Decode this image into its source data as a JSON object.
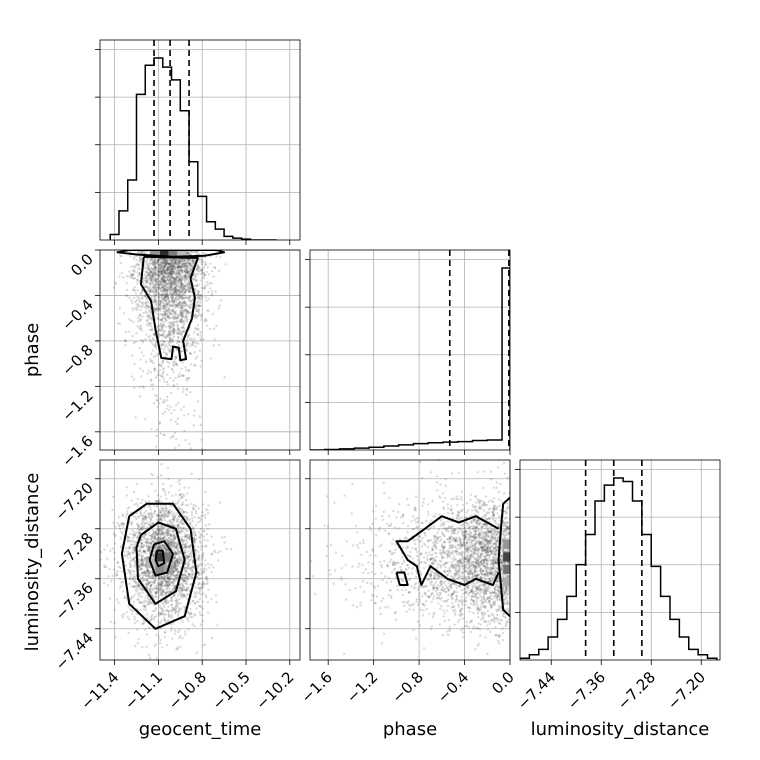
{
  "chart_data": {
    "type": "corner",
    "parameters": [
      "geocent_time",
      "phase",
      "luminosity_distance"
    ],
    "axis_labels": {
      "geocent_time": "geocent_time",
      "phase": "phase",
      "luminosity_distance": "luminosity_distance"
    },
    "ticks": {
      "geocent_time": [
        {
          "value": -11.4,
          "label": "−11.4"
        },
        {
          "value": -11.1,
          "label": "−11.1"
        },
        {
          "value": -10.8,
          "label": "−10.8"
        },
        {
          "value": -10.5,
          "label": "−10.5"
        },
        {
          "value": -10.2,
          "label": "−10.2"
        }
      ],
      "phase": [
        {
          "value": -1.6,
          "label": "−1.6"
        },
        {
          "value": -1.2,
          "label": "−1.2"
        },
        {
          "value": -0.8,
          "label": "−0.8"
        },
        {
          "value": -0.4,
          "label": "−0.4"
        },
        {
          "value": 0.0,
          "label": "0.0"
        }
      ],
      "luminosity_distance": [
        {
          "value": -7.44,
          "label": "−7.44"
        },
        {
          "value": -7.36,
          "label": "−7.36"
        },
        {
          "value": -7.28,
          "label": "−7.28"
        },
        {
          "value": -7.2,
          "label": "−7.20"
        }
      ]
    },
    "ranges": {
      "geocent_time": [
        -11.5,
        -10.13
      ],
      "phase": [
        -1.76,
        0.0
      ],
      "luminosity_distance": [
        -7.49,
        -7.17
      ]
    },
    "grid": true,
    "histograms": {
      "geocent_time": {
        "bin_edges": [
          -11.43,
          -11.37,
          -11.31,
          -11.25,
          -11.19,
          -11.13,
          -11.07,
          -11.01,
          -10.95,
          -10.89,
          -10.83,
          -10.77,
          -10.71,
          -10.65,
          -10.59,
          -10.53,
          -10.47,
          -10.41,
          -10.35,
          -10.29
        ],
        "counts": [
          0.03,
          0.16,
          0.33,
          0.8,
          0.96,
          1.0,
          0.95,
          0.88,
          0.71,
          0.43,
          0.24,
          0.1,
          0.06,
          0.02,
          0.01,
          0.005,
          0.0,
          0.0,
          0.0
        ],
        "quantiles": [
          -11.13,
          -11.02,
          -10.89
        ]
      },
      "phase": {
        "bin_edges": [
          -1.76,
          -1.63,
          -1.5,
          -1.37,
          -1.24,
          -1.11,
          -0.98,
          -0.85,
          -0.72,
          -0.59,
          -0.46,
          -0.33,
          -0.2,
          -0.07,
          0.0
        ],
        "counts": [
          0.0,
          0.003,
          0.006,
          0.01,
          0.015,
          0.022,
          0.028,
          0.035,
          0.04,
          0.043,
          0.046,
          0.052,
          0.055,
          1.0
        ],
        "quantiles": [
          -0.53,
          -0.01
        ]
      },
      "luminosity_distance": {
        "bin_edges": [
          -7.49,
          -7.475,
          -7.46,
          -7.445,
          -7.43,
          -7.415,
          -7.4,
          -7.385,
          -7.37,
          -7.355,
          -7.34,
          -7.325,
          -7.31,
          -7.295,
          -7.28,
          -7.265,
          -7.25,
          -7.235,
          -7.22,
          -7.205,
          -7.19,
          -7.175
        ],
        "counts": [
          0.01,
          0.03,
          0.06,
          0.13,
          0.23,
          0.36,
          0.54,
          0.71,
          0.9,
          0.99,
          1.03,
          1.01,
          0.9,
          0.71,
          0.53,
          0.36,
          0.23,
          0.13,
          0.06,
          0.03,
          0.01
        ],
        "quantiles": [
          -7.385,
          -7.34,
          -7.295
        ]
      }
    },
    "joint": {
      "phase_vs_geocent_time": {
        "center": [
          -11.02,
          -0.05
        ],
        "spread": [
          0.12,
          0.35
        ],
        "contours": [
          [
            [
              -11.25,
              -0.04
            ],
            [
              -11.0,
              -0.06
            ],
            [
              -10.78,
              -0.05
            ],
            [
              -10.65,
              -0.02
            ],
            [
              -10.7,
              0.0
            ],
            [
              -11.3,
              0.0
            ],
            [
              -11.38,
              -0.02
            ],
            [
              -11.25,
              -0.04
            ]
          ],
          [
            [
              -11.2,
              -0.06
            ],
            [
              -11.22,
              -0.3
            ],
            [
              -11.15,
              -0.45
            ],
            [
              -11.12,
              -0.7
            ],
            [
              -11.08,
              -0.95
            ],
            [
              -11.01,
              -0.96
            ],
            [
              -11.0,
              -0.85
            ],
            [
              -10.96,
              -0.86
            ],
            [
              -10.95,
              -0.97
            ],
            [
              -10.91,
              -0.96
            ],
            [
              -10.93,
              -0.8
            ],
            [
              -10.87,
              -0.6
            ],
            [
              -10.85,
              -0.42
            ],
            [
              -10.88,
              -0.25
            ],
            [
              -10.83,
              -0.07
            ],
            [
              -11.2,
              -0.06
            ]
          ]
        ],
        "dense_cells": [
          {
            "x": -11.06,
            "y": -0.03,
            "level": 0.9
          },
          {
            "x": -11.0,
            "y": -0.03,
            "level": 0.55
          },
          {
            "x": -11.12,
            "y": -0.03,
            "level": 0.45
          },
          {
            "x": -10.94,
            "y": -0.03,
            "level": 0.3
          }
        ]
      },
      "luminosity_distance_vs_geocent_time": {
        "center": [
          -11.06,
          -7.33
        ],
        "spread": [
          0.14,
          0.05
        ],
        "contours": [
          [
            [
              -11.3,
              -7.26
            ],
            [
              -11.18,
              -7.24
            ],
            [
              -11.0,
              -7.24
            ],
            [
              -10.88,
              -7.28
            ],
            [
              -10.84,
              -7.35
            ],
            [
              -10.92,
              -7.42
            ],
            [
              -11.12,
              -7.44
            ],
            [
              -11.3,
              -7.4
            ],
            [
              -11.35,
              -7.32
            ],
            [
              -11.3,
              -7.26
            ]
          ],
          [
            [
              -11.22,
              -7.29
            ],
            [
              -11.1,
              -7.27
            ],
            [
              -10.98,
              -7.28
            ],
            [
              -10.92,
              -7.33
            ],
            [
              -10.98,
              -7.38
            ],
            [
              -11.12,
              -7.4
            ],
            [
              -11.24,
              -7.36
            ],
            [
              -11.25,
              -7.31
            ],
            [
              -11.22,
              -7.29
            ]
          ],
          [
            [
              -11.13,
              -7.305
            ],
            [
              -11.06,
              -7.3
            ],
            [
              -11.0,
              -7.32
            ],
            [
              -11.04,
              -7.35
            ],
            [
              -11.12,
              -7.355
            ],
            [
              -11.16,
              -7.33
            ],
            [
              -11.13,
              -7.305
            ]
          ],
          [
            [
              -11.11,
              -7.315
            ],
            [
              -11.07,
              -7.315
            ],
            [
              -11.06,
              -7.335
            ],
            [
              -11.1,
              -7.34
            ],
            [
              -11.12,
              -7.33
            ],
            [
              -11.11,
              -7.315
            ]
          ]
        ],
        "dense_cells": [
          {
            "x": -11.09,
            "y": -7.325,
            "level": 0.85
          },
          {
            "x": -11.03,
            "y": -7.325,
            "level": 0.55
          },
          {
            "x": -11.09,
            "y": -7.345,
            "level": 0.5
          },
          {
            "x": -11.03,
            "y": -7.345,
            "level": 0.4
          },
          {
            "x": -11.15,
            "y": -7.335,
            "level": 0.3
          }
        ]
      },
      "luminosity_distance_vs_phase": {
        "center": [
          -0.05,
          -7.33
        ],
        "spread": [
          0.35,
          0.05
        ],
        "contours": [
          [
            [
              0.0,
              -7.42
            ],
            [
              -0.06,
              -7.41
            ],
            [
              -0.08,
              -7.37
            ],
            [
              -0.1,
              -7.33
            ],
            [
              -0.08,
              -7.28
            ],
            [
              -0.06,
              -7.24
            ],
            [
              0.0,
              -7.23
            ]
          ],
          [
            [
              -0.1,
              -7.28
            ],
            [
              -0.3,
              -7.26
            ],
            [
              -0.45,
              -7.27
            ],
            [
              -0.6,
              -7.26
            ],
            [
              -0.75,
              -7.28
            ],
            [
              -0.9,
              -7.3
            ],
            [
              -1.0,
              -7.3
            ],
            [
              -0.9,
              -7.33
            ],
            [
              -0.82,
              -7.34
            ],
            [
              -0.78,
              -7.37
            ],
            [
              -0.7,
              -7.34
            ],
            [
              -0.55,
              -7.36
            ],
            [
              -0.4,
              -7.37
            ],
            [
              -0.3,
              -7.36
            ],
            [
              -0.15,
              -7.37
            ],
            [
              -0.1,
              -7.35
            ]
          ],
          [
            [
              -1.0,
              -7.35
            ],
            [
              -0.93,
              -7.35
            ],
            [
              -0.9,
              -7.37
            ],
            [
              -0.97,
              -7.37
            ],
            [
              -1.0,
              -7.35
            ]
          ]
        ],
        "dense_cells": [
          {
            "x": -0.02,
            "y": -7.325,
            "level": 0.8
          },
          {
            "x": -0.02,
            "y": -7.345,
            "level": 0.6
          },
          {
            "x": -0.02,
            "y": -7.305,
            "level": 0.45
          },
          {
            "x": -0.02,
            "y": -7.365,
            "level": 0.35
          }
        ]
      }
    }
  }
}
